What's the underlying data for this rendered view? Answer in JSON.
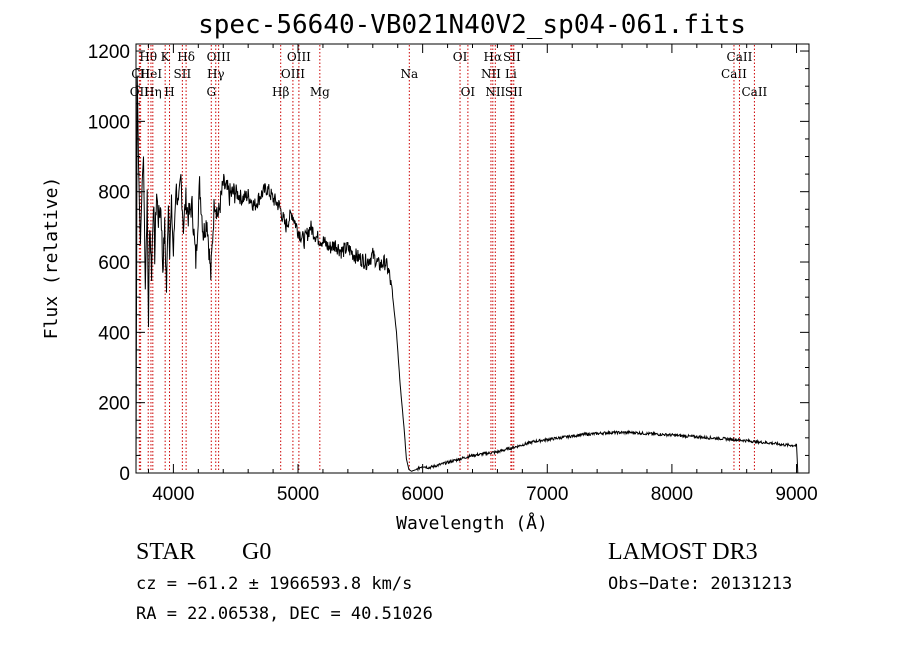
{
  "chart_data": {
    "type": "line",
    "title": "spec-56640-VB021N40V2_sp04-061.fits",
    "xlabel": "Wavelength (Å)",
    "ylabel": "Flux (relative)",
    "xlim": [
      3700,
      9100
    ],
    "ylim": [
      0,
      1220
    ],
    "x_ticks": [
      4000,
      5000,
      6000,
      7000,
      8000,
      9000
    ],
    "y_ticks": [
      0,
      200,
      400,
      600,
      800,
      1000,
      1200
    ],
    "grid": false,
    "line_color": "#000000",
    "marker_color": "#cc0000",
    "series": [
      {
        "x": [
          3700,
          3710,
          3720,
          3735,
          3750,
          3760,
          3775,
          3790,
          3800,
          3810,
          3825,
          3840,
          3850,
          3865,
          3880,
          3900,
          3915,
          3930,
          3945,
          3960,
          3970,
          3985,
          4000,
          4020,
          4040,
          4060,
          4080,
          4100,
          4120,
          4150,
          4180,
          4210,
          4240,
          4270,
          4300,
          4330,
          4360,
          4400,
          4450,
          4500,
          4550,
          4600,
          4650,
          4700,
          4750,
          4800,
          4850,
          4900,
          4950,
          5000,
          5050,
          5100,
          5150,
          5200,
          5250,
          5300,
          5350,
          5400,
          5450,
          5500,
          5550,
          5600,
          5650,
          5700,
          5730,
          5760,
          5790,
          5820,
          5850,
          5870,
          5890,
          5910,
          5950,
          6000,
          6050,
          6100,
          6200,
          6300,
          6400,
          6500,
          6600,
          6700,
          6800,
          6900,
          7000,
          7100,
          7200,
          7300,
          7400,
          7500,
          7600,
          7700,
          7800,
          7900,
          8000,
          8100,
          8200,
          8300,
          8400,
          8500,
          8600,
          8700,
          8800,
          8900,
          9000,
          9010
        ],
        "y": [
          0,
          1130,
          880,
          650,
          830,
          900,
          540,
          780,
          430,
          720,
          570,
          780,
          620,
          800,
          720,
          760,
          580,
          700,
          520,
          780,
          640,
          760,
          620,
          820,
          750,
          840,
          700,
          780,
          730,
          760,
          600,
          820,
          680,
          720,
          560,
          780,
          730,
          820,
          790,
          800,
          780,
          790,
          760,
          790,
          810,
          780,
          760,
          700,
          740,
          690,
          660,
          700,
          670,
          660,
          640,
          650,
          630,
          640,
          620,
          610,
          600,
          620,
          590,
          600,
          570,
          500,
          400,
          250,
          130,
          40,
          10,
          5,
          10,
          20,
          15,
          20,
          30,
          40,
          50,
          55,
          60,
          70,
          80,
          90,
          95,
          100,
          105,
          110,
          112,
          115,
          115,
          115,
          112,
          110,
          108,
          105,
          103,
          100,
          98,
          95,
          92,
          88,
          85,
          80,
          78,
          0
        ]
      }
    ],
    "line_markers": [
      {
        "label": "CII",
        "x": 3737,
        "row": 1
      },
      {
        "label": "OII",
        "x": 3727,
        "row": 2
      },
      {
        "label": "Hθ",
        "x": 3798,
        "row": 0
      },
      {
        "label": "HeI",
        "x": 3820,
        "row": 1
      },
      {
        "label": "Hη",
        "x": 3835,
        "row": 2
      },
      {
        "label": "K",
        "x": 3934,
        "row": 0
      },
      {
        "label": "SII",
        "x": 4072,
        "row": 1
      },
      {
        "label": "H",
        "x": 3969,
        "row": 2
      },
      {
        "label": "Hδ",
        "x": 4102,
        "row": 0
      },
      {
        "label": "OIII",
        "x": 4363,
        "row": 0
      },
      {
        "label": "Hγ",
        "x": 4340,
        "row": 1
      },
      {
        "label": "G",
        "x": 4304,
        "row": 2
      },
      {
        "label": "Hβ",
        "x": 4861,
        "row": 2
      },
      {
        "label": "OIII",
        "x": 4959,
        "row": 1
      },
      {
        "label": "OIII",
        "x": 5007,
        "row": 0
      },
      {
        "label": "Mg",
        "x": 5175,
        "row": 2
      },
      {
        "label": "Na",
        "x": 5893,
        "row": 1
      },
      {
        "label": "OI",
        "x": 6300,
        "row": 0
      },
      {
        "label": "OI",
        "x": 6363,
        "row": 2
      },
      {
        "label": "NII",
        "x": 6548,
        "row": 1
      },
      {
        "label": "Hα",
        "x": 6563,
        "row": 0
      },
      {
        "label": "NII",
        "x": 6583,
        "row": 2
      },
      {
        "label": "Li",
        "x": 6708,
        "row": 1
      },
      {
        "label": "SII",
        "x": 6716,
        "row": 0
      },
      {
        "label": "SII",
        "x": 6731,
        "row": 2
      },
      {
        "label": "CaII",
        "x": 8498,
        "row": 1
      },
      {
        "label": "CaII",
        "x": 8542,
        "row": 0
      },
      {
        "label": "CaII",
        "x": 8662,
        "row": 2
      }
    ]
  },
  "info": {
    "object_class": "STAR",
    "subclass": "G0",
    "survey": "LAMOST DR3",
    "velocity": "cz = −61.2 ± 1966593.8 km/s",
    "obs_date": "Obs−Date: 20131213",
    "coords": "RA =  22.06538, DEC =  40.51026"
  }
}
